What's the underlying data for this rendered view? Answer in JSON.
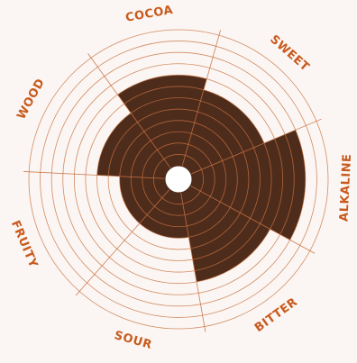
{
  "chart_data": {
    "type": "radial-bar",
    "categories": [
      "COCOA",
      "SWEET",
      "ALKALINE",
      "BITTER",
      "SOUR",
      "FRUITY",
      "WOOD"
    ],
    "values": [
      8,
      7,
      10,
      8,
      4,
      4,
      6
    ],
    "scale_max": 12,
    "rings": 12,
    "grid": true
  },
  "colors": {
    "background": "#fbf6f3",
    "bar": "#4e2c1c",
    "grid": "#c8703e",
    "label": "#c85a1e",
    "hole": "#ffffff"
  }
}
